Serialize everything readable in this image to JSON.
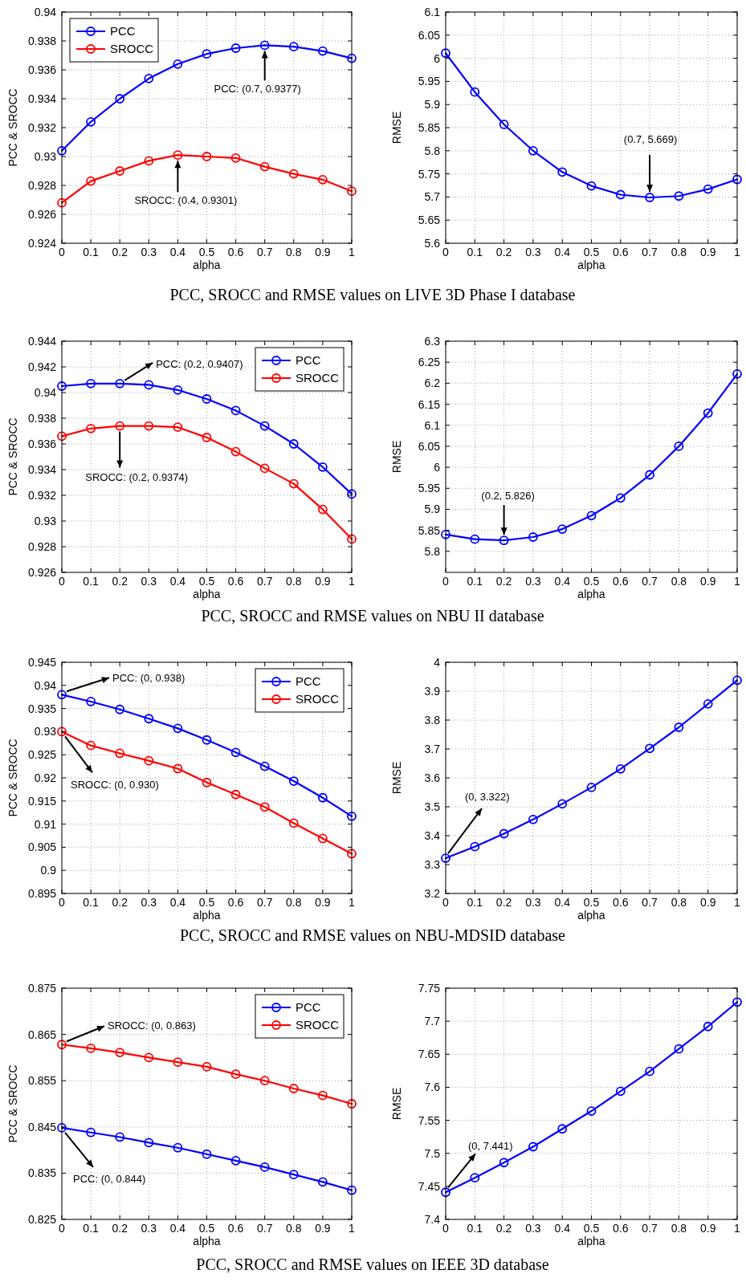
{
  "chart_data": [
    {
      "type": "line",
      "xlabel": "alpha",
      "ylabel": "PCC & SROCC",
      "x": [
        0,
        0.1,
        0.2,
        0.3,
        0.4,
        0.5,
        0.6,
        0.7,
        0.8,
        0.9,
        1
      ],
      "xlim": [
        0,
        1
      ],
      "xticks": [
        0,
        0.1,
        0.2,
        0.3,
        0.4,
        0.5,
        0.6,
        0.7,
        0.8,
        0.9,
        1
      ],
      "ylim": [
        0.924,
        0.94
      ],
      "yticks": [
        0.924,
        0.926,
        0.928,
        0.93,
        0.932,
        0.934,
        0.936,
        0.938,
        0.94
      ],
      "grid": true,
      "legend": "top left",
      "marker": "circle",
      "line_style": "solid",
      "series": [
        {
          "name": "PCC",
          "color": "#0000ff",
          "values": [
            0.9304,
            0.9324,
            0.934,
            0.9354,
            0.9364,
            0.9371,
            0.9375,
            0.9377,
            0.9376,
            0.9373,
            0.9368
          ]
        },
        {
          "name": "SROCC",
          "color": "#ff0000",
          "values": [
            0.9268,
            0.9283,
            0.929,
            0.9297,
            0.9301,
            0.93,
            0.9299,
            0.9293,
            0.9288,
            0.9284,
            0.9276
          ]
        }
      ],
      "annotations": [
        {
          "text": "PCC: (0.7, 0.9377)",
          "x": 0.7,
          "y": 0.9377
        },
        {
          "text": "SROCC: (0.4, 0.9301)",
          "x": 0.4,
          "y": 0.9301
        },
        "PCC, SROCC and RMSE values on LIVE 3D Phase I database"
      ]
    },
    {
      "type": "line",
      "xlabel": "alpha",
      "ylabel": "RMSE",
      "x": [
        0,
        0.1,
        0.2,
        0.3,
        0.4,
        0.5,
        0.6,
        0.7,
        0.8,
        0.9,
        1
      ],
      "xlim": [
        0,
        1
      ],
      "xticks": [
        0,
        0.1,
        0.2,
        0.3,
        0.4,
        0.5,
        0.6,
        0.7,
        0.8,
        0.9,
        1
      ],
      "ylim": [
        5.6,
        6.1
      ],
      "yticks": [
        5.6,
        5.65,
        5.7,
        5.75,
        5.8,
        5.85,
        5.9,
        5.95,
        6,
        6.05,
        6.1
      ],
      "grid": true,
      "marker": "circle",
      "line_style": "solid",
      "series": [
        {
          "color": "#0000ff",
          "values": [
            6.011,
            5.927,
            5.857,
            5.8,
            5.754,
            5.724,
            5.705,
            5.699,
            5.702,
            5.717,
            5.738
          ]
        }
      ],
      "annotations": [
        {
          "text": "(0.7, 5.669)",
          "x": 0.7,
          "y": 5.699
        }
      ]
    },
    {
      "type": "line",
      "xlabel": "alpha",
      "ylabel": "PCC & SROCC",
      "x": [
        0,
        0.1,
        0.2,
        0.3,
        0.4,
        0.5,
        0.6,
        0.7,
        0.8,
        0.9,
        1
      ],
      "xlim": [
        0,
        1
      ],
      "xticks": [
        0,
        0.1,
        0.2,
        0.3,
        0.4,
        0.5,
        0.6,
        0.7,
        0.8,
        0.9,
        1
      ],
      "ylim": [
        0.926,
        0.944
      ],
      "yticks": [
        0.926,
        0.928,
        0.93,
        0.932,
        0.934,
        0.936,
        0.938,
        0.94,
        0.942,
        0.944
      ],
      "grid": true,
      "legend": "top right",
      "marker": "circle",
      "line_style": "solid",
      "series": [
        {
          "name": "PCC",
          "color": "#0000ff",
          "values": [
            0.9405,
            0.9407,
            0.9407,
            0.9406,
            0.9402,
            0.9395,
            0.9386,
            0.9374,
            0.936,
            0.9342,
            0.9321
          ]
        },
        {
          "name": "SROCC",
          "color": "#ff0000",
          "values": [
            0.9366,
            0.9372,
            0.9374,
            0.9374,
            0.9373,
            0.9365,
            0.9354,
            0.9341,
            0.9329,
            0.9309,
            0.9286
          ]
        }
      ],
      "annotations": [
        {
          "text": "PCC: (0.2, 0.9407)",
          "x": 0.2,
          "y": 0.9407
        },
        {
          "text": "SROCC: (0.2, 0.9374)",
          "x": 0.2,
          "y": 0.9374
        },
        "PCC, SROCC and RMSE values on NBU II database"
      ]
    },
    {
      "type": "line",
      "xlabel": "alpha",
      "ylabel": "RMSE",
      "x": [
        0,
        0.1,
        0.2,
        0.3,
        0.4,
        0.5,
        0.6,
        0.7,
        0.8,
        0.9,
        1
      ],
      "xlim": [
        0,
        1
      ],
      "xticks": [
        0,
        0.1,
        0.2,
        0.3,
        0.4,
        0.5,
        0.6,
        0.7,
        0.8,
        0.9,
        1
      ],
      "ylim": [
        5.75,
        6.3
      ],
      "yticks": [
        5.8,
        5.85,
        5.9,
        5.95,
        6,
        6.05,
        6.1,
        6.15,
        6.2,
        6.25,
        6.3
      ],
      "grid": true,
      "marker": "circle",
      "line_style": "solid",
      "series": [
        {
          "color": "#0000ff",
          "values": [
            5.84,
            5.829,
            5.826,
            5.834,
            5.853,
            5.885,
            5.927,
            5.982,
            6.05,
            6.129,
            6.222
          ]
        }
      ],
      "annotations": [
        {
          "text": "(0.2, 5.826)",
          "x": 0.2,
          "y": 5.826
        }
      ]
    },
    {
      "type": "line",
      "xlabel": "alpha",
      "ylabel": "PCC & SROCC",
      "x": [
        0,
        0.1,
        0.2,
        0.3,
        0.4,
        0.5,
        0.6,
        0.7,
        0.8,
        0.9,
        1
      ],
      "xlim": [
        0,
        1
      ],
      "xticks": [
        0,
        0.1,
        0.2,
        0.3,
        0.4,
        0.5,
        0.6,
        0.7,
        0.8,
        0.9,
        1
      ],
      "ylim": [
        0.895,
        0.945
      ],
      "yticks": [
        0.895,
        0.9,
        0.905,
        0.91,
        0.915,
        0.92,
        0.925,
        0.93,
        0.935,
        0.94,
        0.945
      ],
      "grid": true,
      "legend": "top right",
      "marker": "circle",
      "line_style": "solid",
      "series": [
        {
          "name": "PCC",
          "color": "#0000ff",
          "values": [
            0.938,
            0.9365,
            0.9348,
            0.9328,
            0.9307,
            0.9282,
            0.9255,
            0.9225,
            0.9193,
            0.9157,
            0.9117
          ]
        },
        {
          "name": "SROCC",
          "color": "#ff0000",
          "values": [
            0.93,
            0.927,
            0.9253,
            0.9237,
            0.922,
            0.919,
            0.9164,
            0.9137,
            0.9102,
            0.9069,
            0.9036
          ]
        }
      ],
      "annotations": [
        {
          "text": "PCC: (0, 0.938)",
          "x": 0,
          "y": 0.938
        },
        {
          "text": "SROCC: (0, 0.930)",
          "x": 0,
          "y": 0.93
        },
        "PCC, SROCC and RMSE values on NBU-MDSID database"
      ]
    },
    {
      "type": "line",
      "xlabel": "alpha",
      "ylabel": "RMSE",
      "x": [
        0,
        0.1,
        0.2,
        0.3,
        0.4,
        0.5,
        0.6,
        0.7,
        0.8,
        0.9,
        1
      ],
      "xlim": [
        0,
        1
      ],
      "xticks": [
        0,
        0.1,
        0.2,
        0.3,
        0.4,
        0.5,
        0.6,
        0.7,
        0.8,
        0.9,
        1
      ],
      "ylim": [
        3.2,
        4
      ],
      "yticks": [
        3.2,
        3.3,
        3.4,
        3.5,
        3.6,
        3.7,
        3.8,
        3.9,
        4
      ],
      "grid": true,
      "marker": "circle",
      "line_style": "solid",
      "series": [
        {
          "color": "#0000ff",
          "values": [
            3.322,
            3.362,
            3.407,
            3.456,
            3.51,
            3.567,
            3.631,
            3.702,
            3.775,
            3.856,
            3.938
          ]
        }
      ],
      "annotations": [
        {
          "text": "(0, 3.322)",
          "x": 0,
          "y": 3.322
        }
      ]
    },
    {
      "type": "line",
      "xlabel": "alpha",
      "ylabel": "PCC & SROCC",
      "x": [
        0,
        0.1,
        0.2,
        0.3,
        0.4,
        0.5,
        0.6,
        0.7,
        0.8,
        0.9,
        1
      ],
      "xlim": [
        0,
        1
      ],
      "xticks": [
        0,
        0.1,
        0.2,
        0.3,
        0.4,
        0.5,
        0.6,
        0.7,
        0.8,
        0.9,
        1
      ],
      "ylim": [
        0.825,
        0.875
      ],
      "yticks": [
        0.825,
        0.835,
        0.845,
        0.855,
        0.865,
        0.875
      ],
      "grid": true,
      "legend": "top right",
      "marker": "circle",
      "line_style": "solid",
      "series": [
        {
          "name": "PCC",
          "color": "#0000ff",
          "values": [
            0.8448,
            0.8438,
            0.8428,
            0.8416,
            0.8405,
            0.8391,
            0.8377,
            0.8363,
            0.8347,
            0.8331,
            0.8313
          ]
        },
        {
          "name": "SROCC",
          "color": "#ff0000",
          "values": [
            0.8628,
            0.862,
            0.8611,
            0.86,
            0.859,
            0.858,
            0.8564,
            0.855,
            0.8533,
            0.8518,
            0.85
          ]
        }
      ],
      "annotations": [
        {
          "text": "SROCC: (0, 0.863)",
          "x": 0,
          "y": 0.8628
        },
        {
          "text": "PCC: (0, 0.844)",
          "x": 0,
          "y": 0.8448
        },
        "PCC, SROCC and RMSE values on IEEE 3D database"
      ]
    },
    {
      "type": "line",
      "xlabel": "alpha",
      "ylabel": "RMSE",
      "x": [
        0,
        0.1,
        0.2,
        0.3,
        0.4,
        0.5,
        0.6,
        0.7,
        0.8,
        0.9,
        1
      ],
      "xlim": [
        0,
        1
      ],
      "xticks": [
        0,
        0.1,
        0.2,
        0.3,
        0.4,
        0.5,
        0.6,
        0.7,
        0.8,
        0.9,
        1
      ],
      "ylim": [
        7.4,
        7.75
      ],
      "yticks": [
        7.4,
        7.45,
        7.5,
        7.55,
        7.6,
        7.65,
        7.7,
        7.75
      ],
      "grid": true,
      "marker": "circle",
      "line_style": "solid",
      "series": [
        {
          "color": "#0000ff",
          "values": [
            7.441,
            7.463,
            7.486,
            7.51,
            7.537,
            7.564,
            7.594,
            7.624,
            7.658,
            7.692,
            7.729
          ]
        }
      ],
      "annotations": [
        {
          "text": "(0, 7.441)",
          "x": 0,
          "y": 7.441
        }
      ]
    }
  ]
}
